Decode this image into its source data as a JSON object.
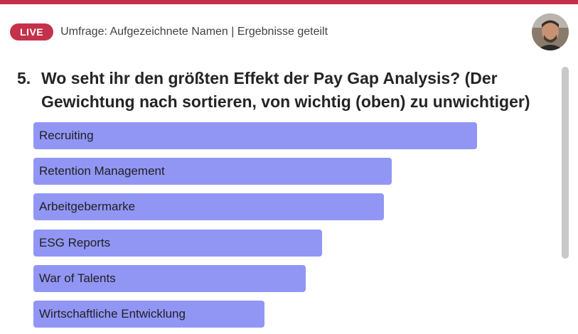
{
  "header": {
    "live_label": "LIVE",
    "status_text": "Umfrage: Aufgezeichnete Namen | Ergebnisse geteilt"
  },
  "question": {
    "number": "5.",
    "text": "Wo seht ihr den größten Effekt der Pay Gap Analysis? (Der Gewichtung nach sortieren, von wichtig (oben) zu unwichtiger)"
  },
  "chart_data": {
    "type": "bar",
    "orientation": "horizontal",
    "categories": [
      "Recruiting",
      "Retention Management",
      "Arbeitgebermarke",
      "ESG Reports",
      "War of Talents",
      "Wirtschaftliche Entwicklung"
    ],
    "values": [
      1.0,
      0.808,
      0.79,
      0.65,
      0.613,
      0.521
    ]
  },
  "colors": {
    "accent": "#c4314b",
    "bar": "#9196f5"
  }
}
